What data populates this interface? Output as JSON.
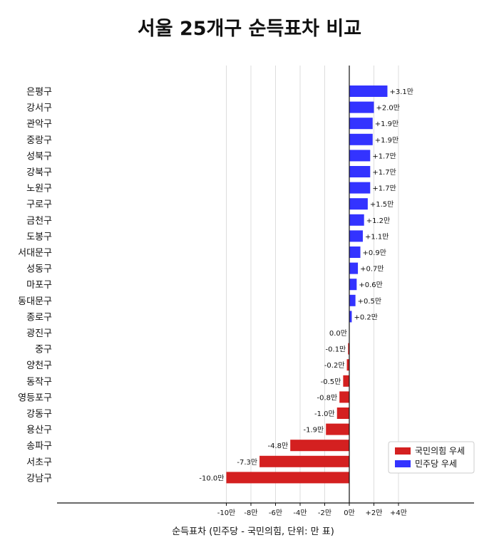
{
  "chart_data": {
    "type": "bar",
    "orientation": "horizontal",
    "title": "서울 25개구 순득표차 비교",
    "xlabel": "순득표차 (민주당 - 국민의힘, 단위: 만 표)",
    "ylabel": "",
    "xlim": [
      -12.5,
      5.0
    ],
    "grid": true,
    "legend_position": "bottom-right",
    "x_ticks": [
      -10,
      -8,
      -6,
      -4,
      -2,
      0,
      2,
      4
    ],
    "x_tick_labels": [
      "-10만",
      "-8만",
      "-6만",
      "-4만",
      "-2만",
      "0만",
      "+2만",
      "+4만"
    ],
    "categories": [
      "은평구",
      "강서구",
      "관악구",
      "중랑구",
      "성북구",
      "강북구",
      "노원구",
      "구로구",
      "금천구",
      "도봉구",
      "서대문구",
      "성동구",
      "마포구",
      "동대문구",
      "종로구",
      "광진구",
      "중구",
      "양천구",
      "동작구",
      "영등포구",
      "강동구",
      "용산구",
      "송파구",
      "서초구",
      "강남구"
    ],
    "values": [
      3.1,
      2.0,
      1.9,
      1.9,
      1.7,
      1.7,
      1.7,
      1.5,
      1.2,
      1.1,
      0.9,
      0.7,
      0.6,
      0.5,
      0.2,
      0.0,
      -0.1,
      -0.2,
      -0.5,
      -0.8,
      -1.0,
      -1.9,
      -4.8,
      -7.3,
      -10.0
    ],
    "value_labels": [
      "+3.1만",
      "+2.0만",
      "+1.9만",
      "+1.9만",
      "+1.7만",
      "+1.7만",
      "+1.7만",
      "+1.5만",
      "+1.2만",
      "+1.1만",
      "+0.9만",
      "+0.7만",
      "+0.6만",
      "+0.5만",
      "+0.2만",
      "0.0만",
      "-0.1만",
      "-0.2만",
      "-0.5만",
      "-0.8만",
      "-1.0만",
      "-1.9만",
      "-4.8만",
      "-7.3만",
      "-10.0만"
    ],
    "legend": [
      {
        "name": "국민의힘 우세",
        "color": "#d42020"
      },
      {
        "name": "민주당 우세",
        "color": "#3333ff"
      }
    ],
    "colors": {
      "positive": "#3333ff",
      "negative": "#d42020",
      "grid": "#dddddd",
      "axis": "#111111"
    }
  }
}
